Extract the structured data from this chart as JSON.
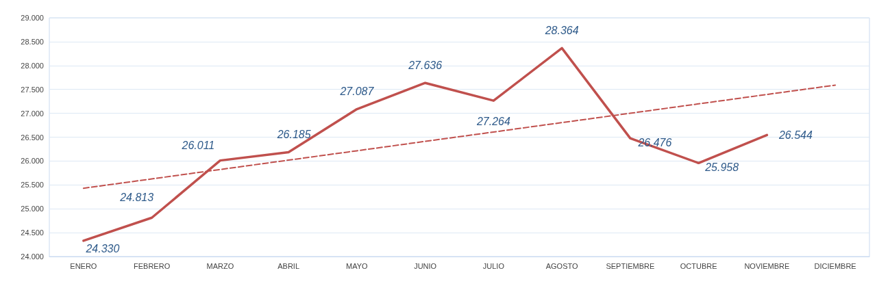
{
  "chart_data": {
    "type": "line",
    "categories": [
      "ENERO",
      "FEBRERO",
      "MARZO",
      "ABRIL",
      "MAYO",
      "JUNIO",
      "JULIO",
      "AGOSTO",
      "SEPTIEMBRE",
      "OCTUBRE",
      "NOVIEMBRE",
      "DICIEMBRE"
    ],
    "series": [
      {
        "color": "#c0504d",
        "line_style": "solid",
        "values": [
          24330,
          24813,
          26011,
          26185,
          27087,
          27636,
          27264,
          28364,
          26476,
          25958,
          26544,
          null
        ],
        "value_labels": [
          "24.330",
          "24.813",
          "26.011",
          "26.185",
          "27.087",
          "27.636",
          "27.264",
          "28.364",
          "26.476",
          "25.958",
          "26.544",
          null
        ]
      },
      {
        "type": "line",
        "color": "#c0504d",
        "line_style": "dashed",
        "values": [
          25430,
          25626,
          25823,
          26019,
          26215,
          26412,
          26608,
          26805,
          27001,
          27197,
          27394,
          27590
        ]
      }
    ],
    "ylim": [
      24000,
      29000
    ],
    "yticks": [
      {
        "value": 24000,
        "label": "24.000"
      },
      {
        "value": 24500,
        "label": "24.500"
      },
      {
        "value": 25000,
        "label": "25.000"
      },
      {
        "value": 25500,
        "label": "25.500"
      },
      {
        "value": 26000,
        "label": "26.000"
      },
      {
        "value": 26500,
        "label": "26.500"
      },
      {
        "value": 27000,
        "label": "27.000"
      },
      {
        "value": 27500,
        "label": "27.500"
      },
      {
        "value": 28000,
        "label": "28.000"
      },
      {
        "value": 28500,
        "label": "28.500"
      },
      {
        "value": 29000,
        "label": "29.000"
      }
    ],
    "grid": "y",
    "marker": "none"
  }
}
